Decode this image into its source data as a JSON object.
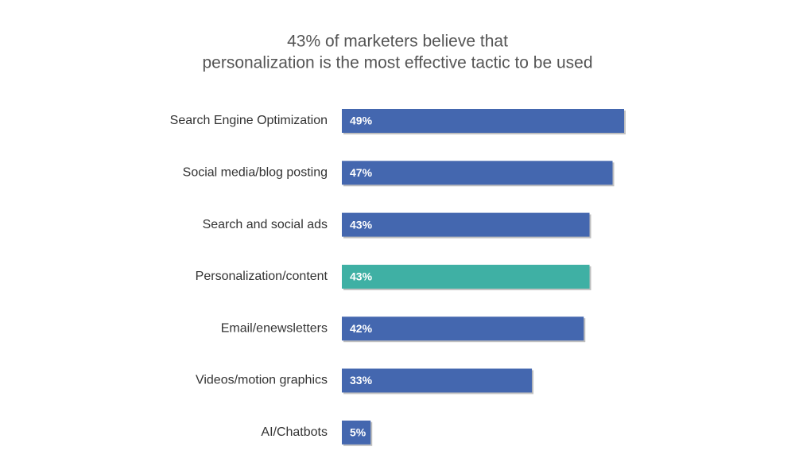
{
  "chart_data": {
    "type": "bar",
    "orientation": "horizontal",
    "title": [
      "43% of marketers believe that",
      "personalization is the most effective tactic to be used"
    ],
    "categories": [
      "Search Engine Optimization",
      "Social media/blog posting",
      "Search and social ads",
      "Personalization/content",
      "Email/enewsletters",
      "Videos/motion graphics",
      "AI/Chatbots"
    ],
    "values": [
      49,
      47,
      43,
      43,
      42,
      33,
      5
    ],
    "value_labels": [
      "49%",
      "47%",
      "43%",
      "43%",
      "42%",
      "33%",
      "5%"
    ],
    "colors": [
      "#4467af",
      "#4467af",
      "#4467af",
      "#3fb0a4",
      "#4467af",
      "#4467af",
      "#4467af"
    ]
  }
}
